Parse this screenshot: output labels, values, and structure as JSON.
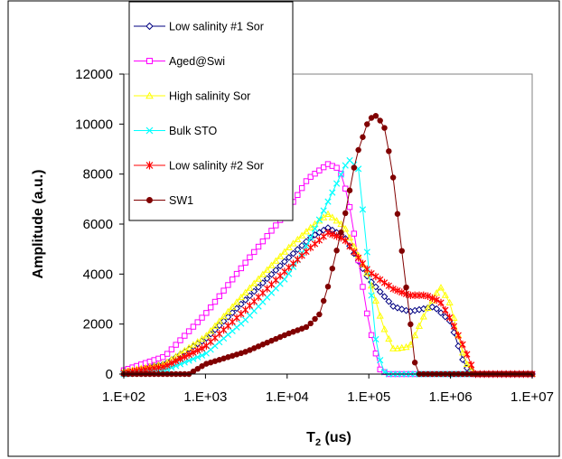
{
  "chart_data": {
    "type": "line",
    "title": "",
    "xlabel": "T2 (us)",
    "xlabel_main": "T",
    "xlabel_sub": "2",
    "xlabel_rest": " (us)",
    "ylabel": "Amplitude (a.u.)",
    "xscale": "log",
    "xlim": [
      100,
      10000000
    ],
    "ylim": [
      0,
      12000
    ],
    "x_ticks": [
      100,
      1000,
      10000,
      100000,
      1000000,
      10000000
    ],
    "x_tick_labels": [
      "1.E+02",
      "1.E+03",
      "1.E+04",
      "1.E+05",
      "1.E+06",
      "1.E+07"
    ],
    "y_ticks": [
      0,
      2000,
      4000,
      6000,
      8000,
      10000,
      12000
    ],
    "y_tick_labels": [
      "0",
      "2000",
      "4000",
      "6000",
      "8000",
      "10000",
      "12000"
    ],
    "grid": false,
    "legend_position": "top-left",
    "series": [
      {
        "name": "Low salinity #1 Sor",
        "color": "#000080",
        "marker": "diamond",
        "x": [
          100,
          316,
          1000,
          3162,
          10000,
          20000,
          31623,
          50000,
          100000,
          200000,
          316228,
          630000,
          1000000,
          1500000,
          2000000,
          10000000
        ],
        "y": [
          100,
          400,
          1400,
          3000,
          4600,
          5500,
          5850,
          5500,
          3800,
          2700,
          2500,
          2700,
          2100,
          300,
          0,
          0
        ]
      },
      {
        "name": "Aged@Swi",
        "color": "#FF00FF",
        "marker": "square",
        "x": [
          100,
          316,
          1000,
          3162,
          10000,
          17783,
          31623,
          44000,
          56234,
          100000,
          135000,
          170000,
          220000,
          10000000
        ],
        "y": [
          150,
          700,
          2400,
          4500,
          6500,
          7800,
          8400,
          8200,
          7000,
          2000,
          200,
          0,
          0,
          0
        ]
      },
      {
        "name": " High salinity Sor",
        "color": "#FFFF00",
        "marker": "triangle",
        "x": [
          100,
          316,
          1000,
          3162,
          10000,
          20000,
          31623,
          50000,
          100000,
          150000,
          200000,
          316228,
          500000,
          750000,
          1000000,
          1500000,
          2000000,
          10000000
        ],
        "y": [
          100,
          400,
          1500,
          3300,
          5000,
          5900,
          6400,
          5900,
          3900,
          1900,
          1000,
          1100,
          2500,
          3500,
          2800,
          500,
          0,
          0
        ]
      },
      {
        "name": "Bulk STO",
        "color": "#00FFFF",
        "marker": "x",
        "x": [
          100,
          316,
          1000,
          3162,
          10000,
          17783,
          31623,
          56234,
          75000,
          100000,
          125893,
          158489,
          200000,
          10000000
        ],
        "y": [
          0,
          150,
          800,
          2200,
          3900,
          5200,
          6900,
          8600,
          8200,
          4200,
          900,
          0,
          0,
          0
        ]
      },
      {
        "name": "Low salinity #2 Sor",
        "color": "#FF0000",
        "marker": "star",
        "x": [
          100,
          316,
          1000,
          3162,
          10000,
          20000,
          31623,
          50000,
          100000,
          200000,
          316228,
          500000,
          750000,
          1000000,
          1500000,
          2000000,
          10000000
        ],
        "y": [
          50,
          300,
          1100,
          2600,
          4200,
          5100,
          5650,
          5400,
          4100,
          3400,
          3150,
          3150,
          2900,
          2200,
          1000,
          0,
          0
        ]
      },
      {
        "name": "SW1",
        "color": "#800000",
        "marker": "circle",
        "x": [
          100,
          630,
          1000,
          3162,
          10000,
          17783,
          25000,
          31623,
          50000,
          70000,
          100000,
          125893,
          158489,
          200000,
          250000,
          316228,
          380000,
          10000000
        ],
        "y": [
          0,
          0,
          400,
          900,
          1600,
          1900,
          2400,
          3500,
          6200,
          8700,
          10200,
          10350,
          9800,
          7800,
          5100,
          2300,
          0,
          0
        ]
      }
    ]
  }
}
